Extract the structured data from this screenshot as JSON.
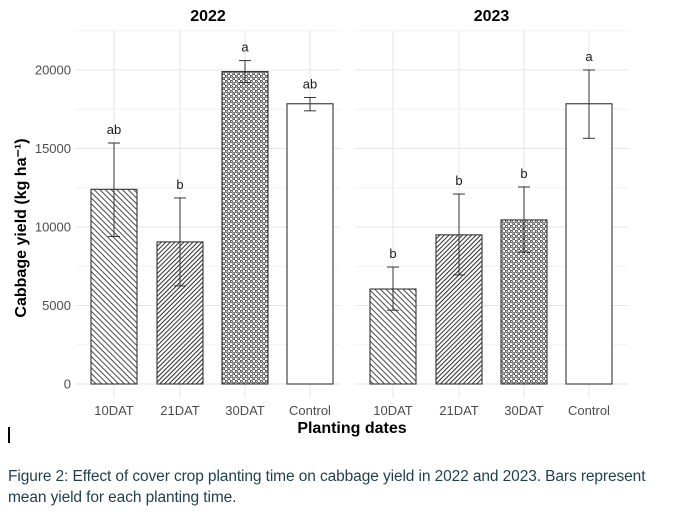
{
  "chart_data": {
    "type": "bar",
    "ylabel": "Cabbage yield (kg ha⁻¹)",
    "xlabel": "Planting dates",
    "ylim": [
      0,
      22500
    ],
    "yticks": [
      0,
      5000,
      10000,
      15000,
      20000
    ],
    "grid": true,
    "categories": [
      "10DAT",
      "21DAT",
      "30DAT",
      "Control"
    ],
    "patterns": [
      "diagonal-lines",
      "dense-diagonal-lines",
      "circles",
      "none"
    ],
    "panels": [
      {
        "title": "2022",
        "values": [
          12400,
          9050,
          19900,
          17850
        ],
        "error_low": [
          9400,
          6250,
          19200,
          17400
        ],
        "error_high": [
          15350,
          11850,
          20600,
          18250
        ],
        "letters": [
          "ab",
          "b",
          "a",
          "ab"
        ]
      },
      {
        "title": "2023",
        "values": [
          6050,
          9500,
          10450,
          17850
        ],
        "error_low": [
          4700,
          6950,
          8400,
          15650
        ],
        "error_high": [
          7450,
          12100,
          12550,
          20000
        ],
        "letters": [
          "b",
          "b",
          "b",
          "a"
        ]
      }
    ]
  },
  "caption": "Figure 2: Effect of cover crop planting time on cabbage yield in 2022 and 2023. Bars represent mean yield for each planting time."
}
